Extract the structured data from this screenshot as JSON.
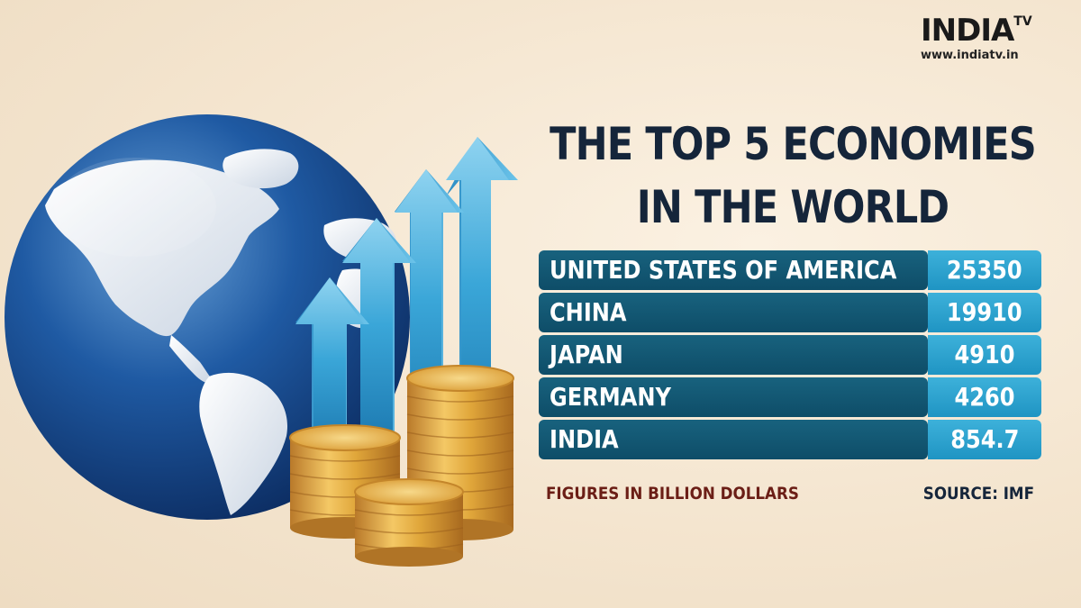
{
  "logo": {
    "word": "INDIA",
    "tv": "TV",
    "url": "www.indiatv.in"
  },
  "title": {
    "line1": "THE TOP 5 ECONOMIES",
    "line2": "IN THE WORLD"
  },
  "rows": [
    {
      "name": "UNITED STATES OF AMERICA",
      "value": "25350"
    },
    {
      "name": "CHINA",
      "value": "19910"
    },
    {
      "name": "JAPAN",
      "value": "4910"
    },
    {
      "name": "GERMANY",
      "value": "4260"
    },
    {
      "name": "INDIA",
      "value": "854.7"
    }
  ],
  "footnote": "FIGURES IN BILLION DOLLARS",
  "source": "SOURCE: IMF",
  "colors": {
    "title": "#15253a",
    "name_cell": "#0e4d68",
    "value_cell": "#2ba3cf",
    "footnote": "#6b1e16",
    "globe_ocean": "#1b4f97",
    "coin_gold": "#e0a63a",
    "arrow_blue": "#3aa6d8"
  },
  "icons": [
    "globe-illustration",
    "up-arrows-illustration",
    "coin-stacks-illustration"
  ]
}
